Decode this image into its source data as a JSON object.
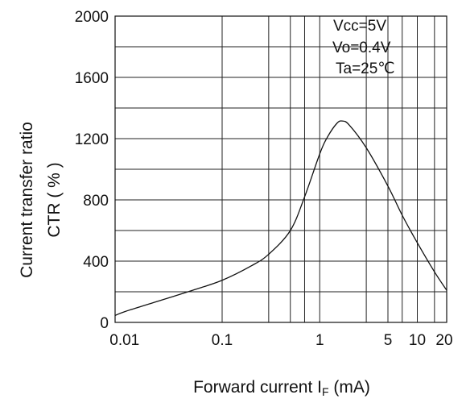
{
  "chart_data": {
    "type": "line",
    "xscale": "log",
    "xlim": [
      0.008,
      20
    ],
    "ylim": [
      0,
      2000
    ],
    "xticks": [
      {
        "value": 0.01,
        "label": "0.01"
      },
      {
        "value": 0.1,
        "label": "0.1"
      },
      {
        "value": 1,
        "label": "1"
      },
      {
        "value": 5,
        "label": "5"
      },
      {
        "value": 10,
        "label": "10"
      },
      {
        "value": 20,
        "label": "20"
      }
    ],
    "yticks": [
      {
        "value": 0,
        "label": "0"
      },
      {
        "value": 400,
        "label": "400"
      },
      {
        "value": 800,
        "label": "800"
      },
      {
        "value": 1200,
        "label": "1200"
      },
      {
        "value": 1600,
        "label": "1600"
      },
      {
        "value": 2000,
        "label": "2000"
      }
    ],
    "x_gridlines": [
      0.1,
      0.3,
      0.5,
      0.7,
      1,
      3,
      5,
      7,
      10,
      15
    ],
    "y_gridlines": [
      200,
      400,
      600,
      800,
      1000,
      1200,
      1400,
      1600,
      1800
    ],
    "grid": true,
    "xlabel": {
      "main": "Forward current I",
      "sub": "F",
      "unit": " (mA)"
    },
    "ylabel": [
      "Current transfer ratio",
      "CTR ( % )"
    ],
    "annotations": [
      "Vcc=5V",
      "Vo=0.4V",
      "Ta=25℃"
    ],
    "series": [
      {
        "x": [
          0.008,
          0.01,
          0.02,
          0.05,
          0.1,
          0.2,
          0.3,
          0.5,
          0.7,
          1.0,
          1.2,
          1.5,
          1.7,
          2.0,
          3.0,
          5.0,
          7.0,
          10,
          15,
          20
        ],
        "y": [
          45,
          70,
          130,
          210,
          275,
          370,
          445,
          600,
          820,
          1100,
          1210,
          1300,
          1315,
          1290,
          1140,
          890,
          700,
          520,
          330,
          210
        ]
      }
    ]
  }
}
